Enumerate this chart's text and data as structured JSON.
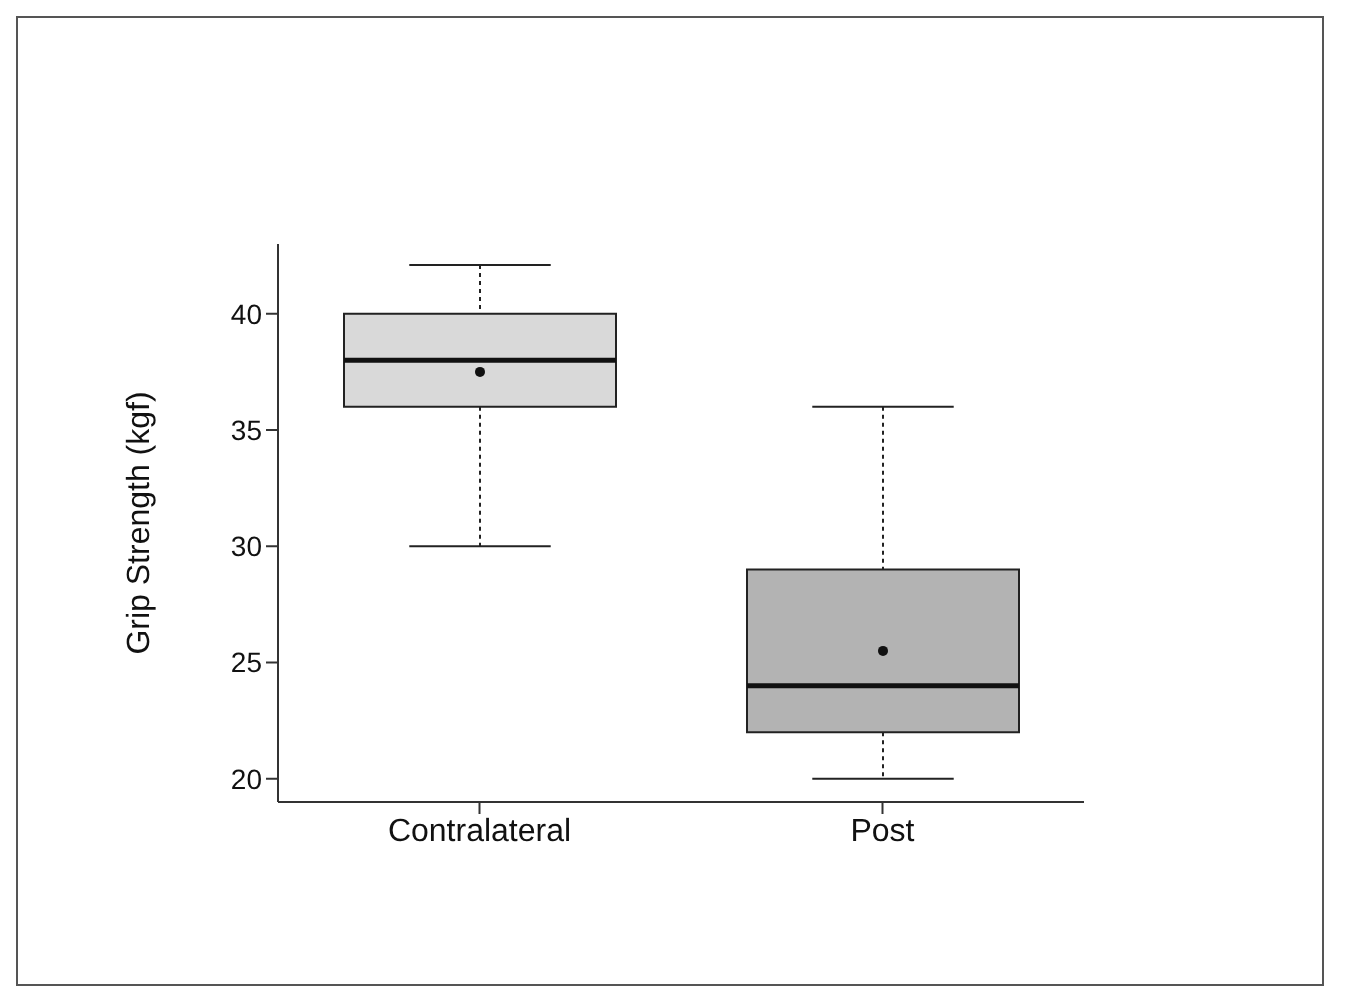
{
  "chart_data": {
    "type": "box",
    "ylabel": "Grip Strength (kgf)",
    "categories": [
      "Contralateral",
      "Post"
    ],
    "boxes": [
      {
        "low": 30,
        "q1": 36,
        "median": 38,
        "q3": 40,
        "high": 42.1,
        "mean": 37.5
      },
      {
        "low": 20,
        "q1": 22,
        "median": 24,
        "q3": 29,
        "high": 36,
        "mean": 25.5
      }
    ],
    "colors": [
      "#d9d9d9",
      "#b3b3b3"
    ],
    "ylim": [
      19,
      43
    ],
    "yticks": [
      20,
      25,
      30,
      35,
      40
    ]
  }
}
